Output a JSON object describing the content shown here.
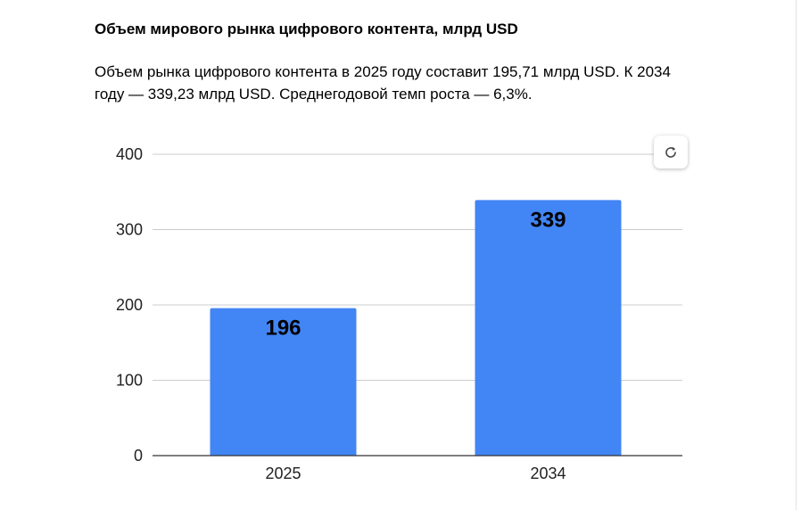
{
  "header": {
    "title": "Объем мирового рынка цифрового контента, млрд USD",
    "description": "Объем рынка цифрового контента в 2025 году составит 195,71 млрд USD. К 2034 году — 339,23 млрд USD. Среднегодовой темп роста — 6,3%."
  },
  "toolbar": {
    "refresh_icon": "refresh-icon"
  },
  "colors": {
    "bar": "#4285F4",
    "grid": "#cccccc",
    "baseline": "#333333"
  },
  "chart_data": {
    "type": "bar",
    "title": "Объем мирового рынка цифрового контента, млрд USD",
    "xlabel": "",
    "ylabel": "",
    "categories": [
      "2025",
      "2034"
    ],
    "values": [
      195.71,
      339.23
    ],
    "data_labels": [
      "196",
      "339"
    ],
    "ylim": [
      0,
      400
    ],
    "yticks": [
      0,
      100,
      200,
      300,
      400
    ],
    "grid": true,
    "legend": "none"
  }
}
